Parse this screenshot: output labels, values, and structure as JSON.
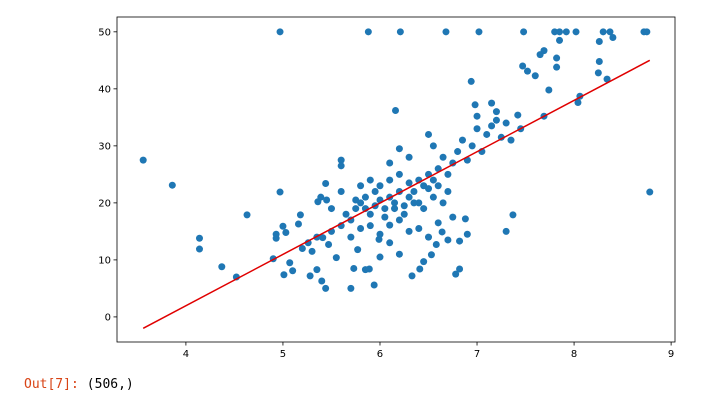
{
  "output": {
    "prompt": "Out[7]:",
    "text": "(506,)"
  },
  "chart_data": {
    "type": "scatter",
    "color": "#1f77b4",
    "x": [
      3.56,
      3.86,
      4.14,
      4.14,
      4.37,
      4.52,
      4.63,
      4.97,
      5.88,
      6.21,
      6.68,
      7.02,
      7.48,
      7.8,
      7.85,
      7.92,
      8.02,
      8.3,
      8.37,
      8.4,
      8.72,
      8.75,
      8.26,
      8.78,
      7.3,
      7.37,
      8.25,
      8.34,
      8.26,
      8.04,
      8.06,
      7.82,
      7.82,
      7.69,
      7.65,
      7.6,
      7.47,
      7.52,
      7.85,
      6.94,
      7.74,
      7.69,
      6.16,
      7.42,
      7.2,
      7.15,
      6.98,
      7.0,
      4.9,
      4.93,
      4.93,
      4.97,
      5.0,
      5.03,
      5.01,
      5.07,
      5.1,
      5.16,
      5.18,
      5.26,
      5.28,
      5.35,
      5.4,
      5.44,
      5.36,
      5.39,
      5.41,
      5.44,
      5.47,
      5.55,
      5.6,
      5.6,
      5.6,
      5.7,
      5.73,
      5.77,
      5.85,
      5.89,
      5.94,
      6.0,
      5.99,
      6.1,
      6.2,
      6.33,
      6.41,
      6.45,
      6.53,
      6.58,
      6.64,
      6.78,
      6.82,
      6.82,
      6.88,
      6.9,
      5.7,
      5.75,
      5.8,
      5.85,
      5.9,
      5.95,
      6.0,
      6.0,
      6.05,
      6.1,
      6.1,
      6.15,
      6.2,
      6.2,
      6.25,
      6.3,
      6.3,
      6.35,
      6.4,
      6.4,
      6.45,
      6.5,
      6.5,
      6.55,
      6.6,
      6.6,
      6.65,
      6.7,
      6.7,
      6.75,
      6.8,
      6.85,
      6.9,
      6.95,
      7.0,
      7.05,
      7.1,
      7.15,
      7.2,
      7.25,
      7.3,
      7.35,
      7.45,
      6.5,
      6.55,
      6.3,
      6.1,
      6.2,
      5.9,
      5.8,
      5.6,
      5.65,
      5.5,
      5.45,
      5.7,
      5.8,
      5.9,
      6.0,
      6.1,
      6.2,
      6.3,
      6.4,
      6.5,
      6.6,
      6.7,
      6.75,
      5.5,
      5.35,
      5.3,
      5.2,
      6.15,
      6.05,
      6.25,
      6.35,
      6.45,
      6.55,
      6.65,
      5.95,
      5.85,
      5.75
    ],
    "values": [
      27.5,
      23.1,
      13.8,
      11.9,
      8.8,
      7.0,
      17.9,
      50,
      50,
      50,
      50,
      50,
      50,
      50,
      50,
      50,
      50,
      50,
      50,
      49,
      50,
      50,
      48.3,
      21.9,
      15,
      17.9,
      42.8,
      41.7,
      44.8,
      37.6,
      38.7,
      45.4,
      43.8,
      46.7,
      46,
      42.3,
      44,
      43.1,
      48.5,
      41.3,
      39.8,
      35.2,
      36.2,
      35.4,
      36,
      37.5,
      37.2,
      35.2,
      10.2,
      13.8,
      14.5,
      21.9,
      15.9,
      14.8,
      7.4,
      9.5,
      8.1,
      16.3,
      17.9,
      13,
      7.2,
      8.3,
      6.3,
      5,
      20.2,
      21,
      13.9,
      23.4,
      12.7,
      10.4,
      22,
      27.5,
      26.5,
      5,
      8.5,
      11.8,
      8.3,
      8.4,
      5.6,
      10.5,
      13.6,
      16.1,
      11,
      7.2,
      8.4,
      9.7,
      10.9,
      12.7,
      14.9,
      7.5,
      8.4,
      13.3,
      17.2,
      14.5,
      17,
      19,
      20,
      21,
      18,
      22,
      20.5,
      23,
      19,
      21,
      24,
      20,
      22,
      25,
      19.5,
      21,
      23.5,
      22,
      24,
      20,
      23,
      22.5,
      25,
      24,
      26,
      23,
      28,
      25,
      22,
      27,
      29,
      31,
      27.5,
      30,
      33,
      29,
      32,
      33.5,
      34.5,
      31.5,
      34,
      31,
      33,
      32,
      30,
      28,
      27,
      29.5,
      24,
      23,
      16,
      18,
      19,
      20.5,
      14,
      15.5,
      16,
      14.5,
      13,
      17,
      15,
      15.5,
      14,
      16.5,
      13.5,
      17.5,
      15,
      14,
      11.5,
      12,
      19,
      17.5,
      18,
      20,
      19,
      21,
      20,
      19.5,
      19,
      20.5
    ],
    "fit": {
      "color": "#e00000",
      "x": [
        3.56,
        8.78
      ],
      "values": [
        -2,
        45
      ]
    },
    "xlim": [
      3.29,
      9.04
    ],
    "ylim": [
      -4.4,
      52.6
    ],
    "xticks": [
      4,
      5,
      6,
      7,
      8,
      9
    ],
    "yticks": [
      0,
      10,
      20,
      30,
      40,
      50
    ]
  }
}
